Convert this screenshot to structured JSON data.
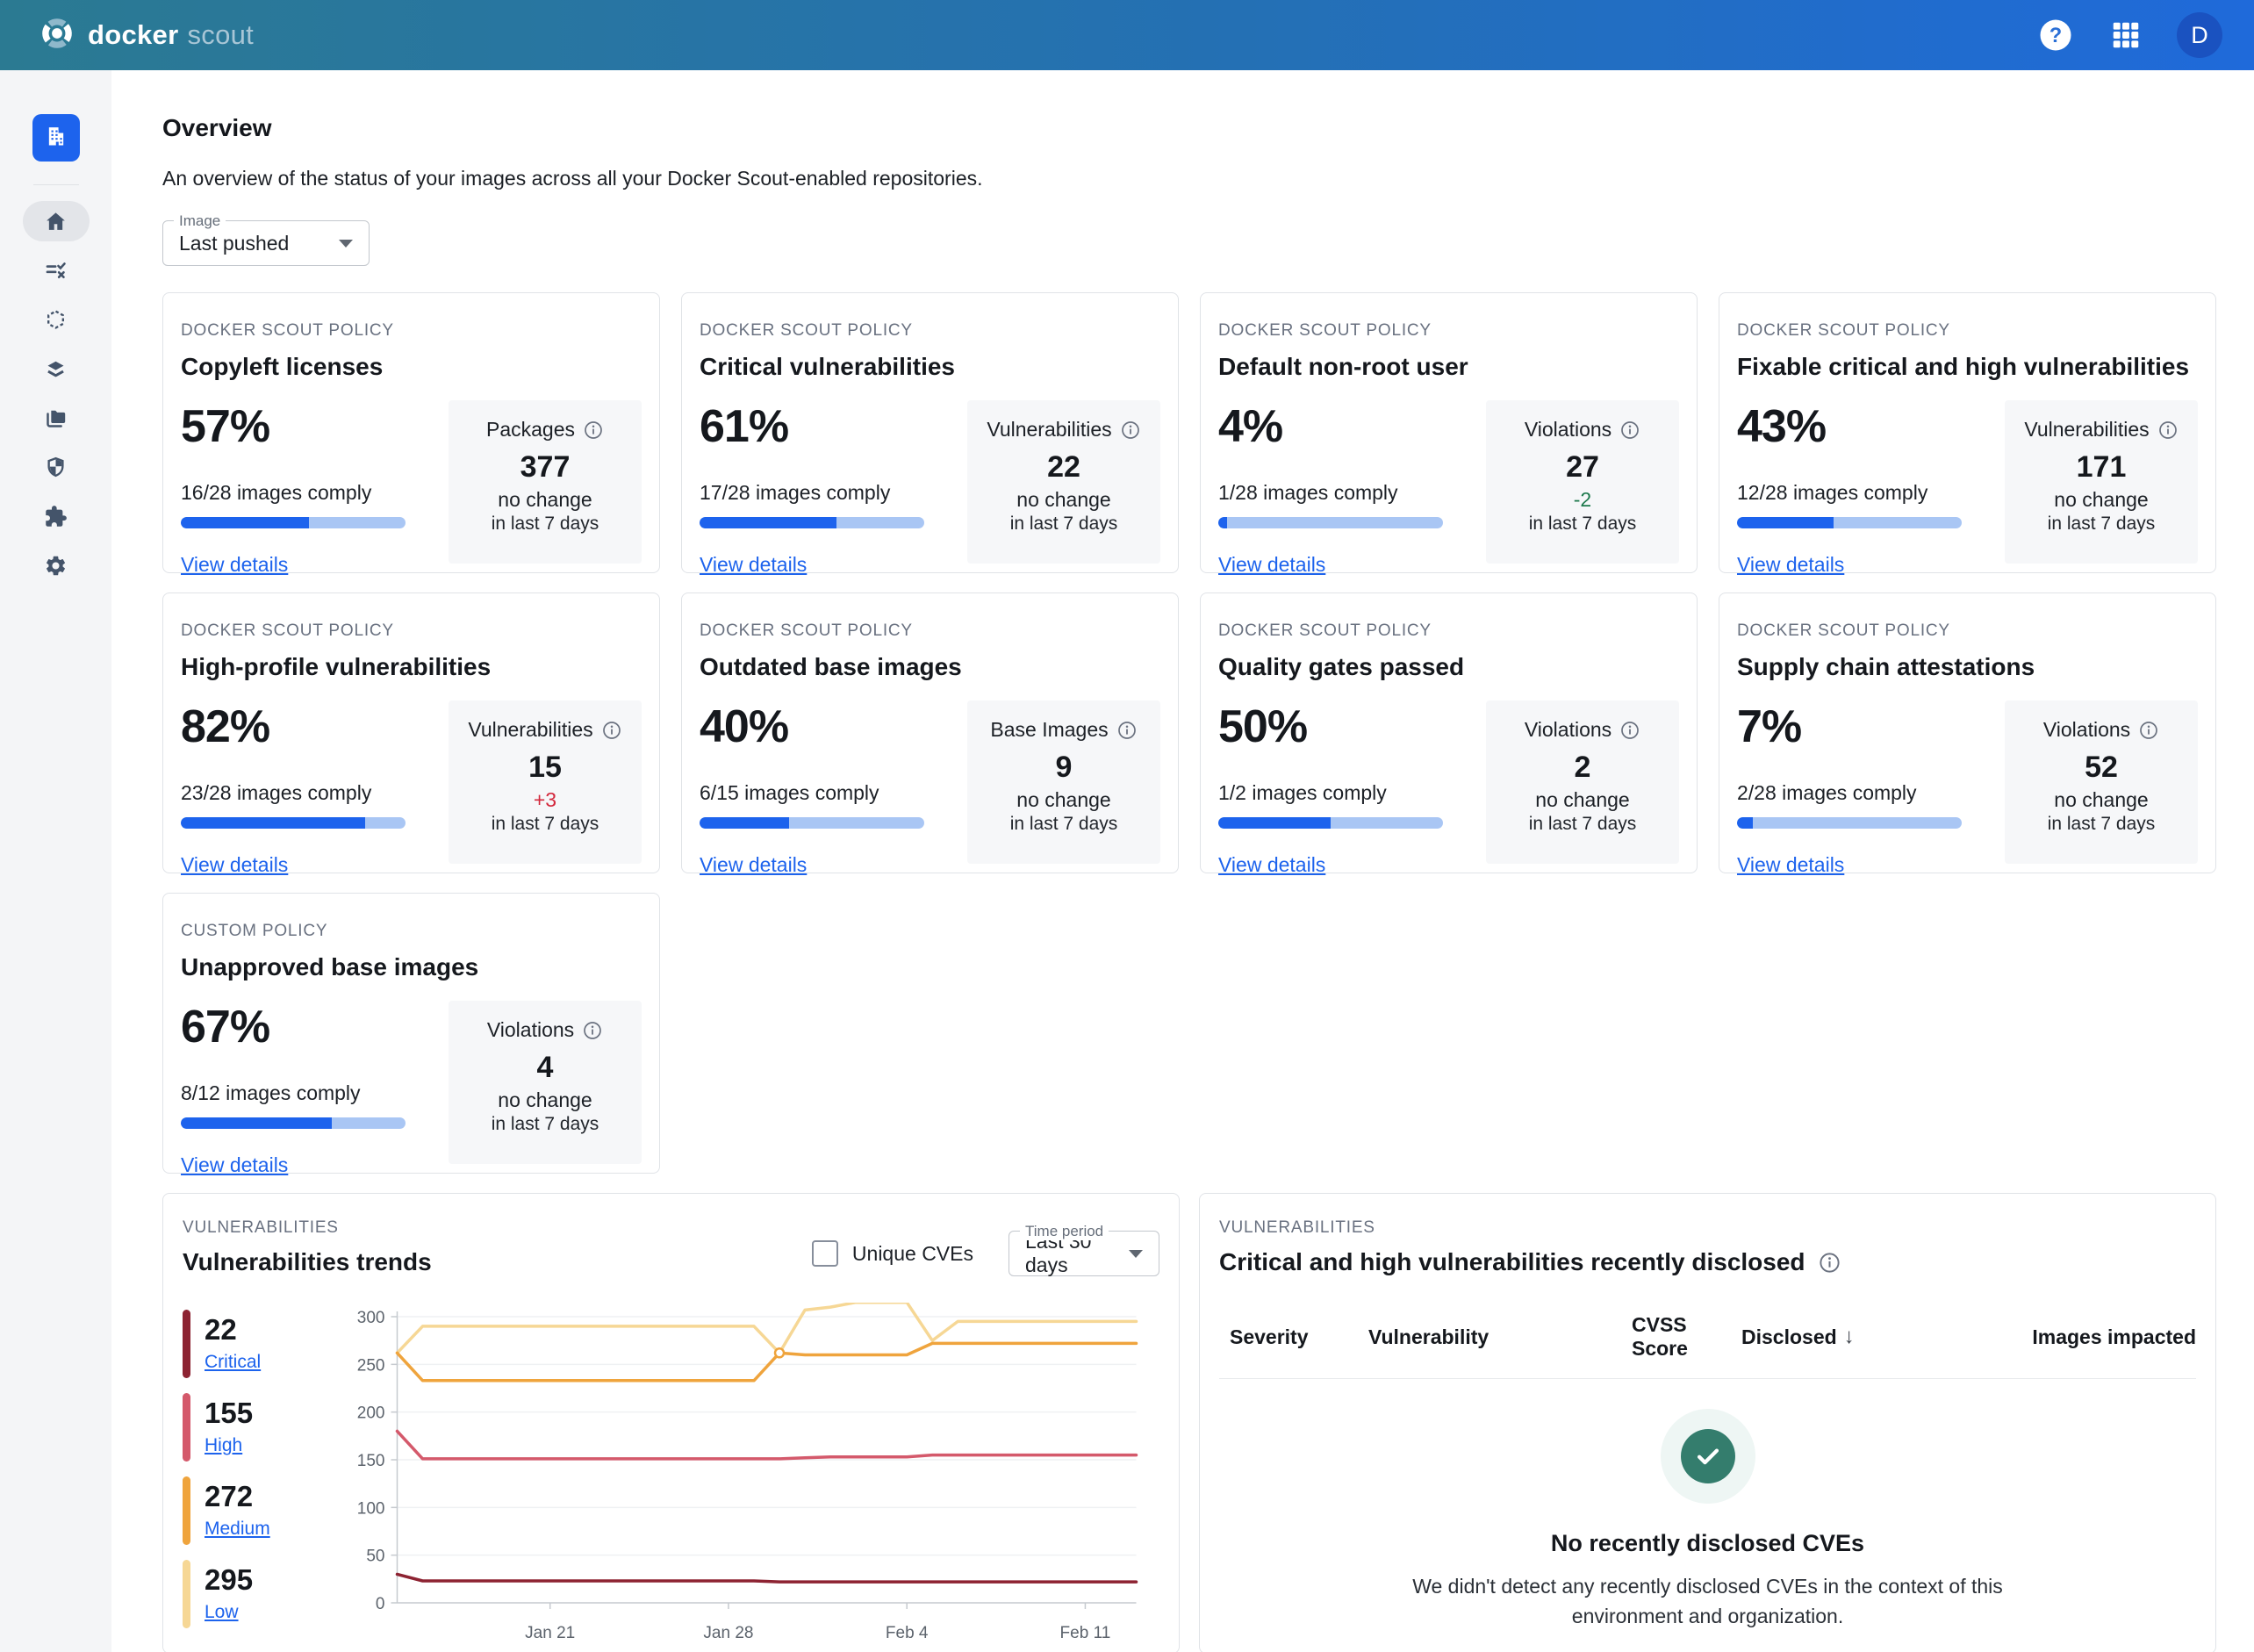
{
  "topbar": {
    "brand_docker": "docker",
    "brand_scout": "scout",
    "avatar_initial": "D",
    "icons": [
      "help-icon",
      "apps-grid-icon",
      "avatar"
    ]
  },
  "sidebar": {
    "icons": [
      "organization-building-icon",
      "home-icon",
      "policies-checklist-icon",
      "images-cube-icon",
      "layers-icon",
      "repositories-folder-icon",
      "vulnerabilities-shield-icon",
      "integrations-puzzle-icon",
      "settings-gear-icon"
    ]
  },
  "header": {
    "title": "Overview",
    "subtitle": "An overview of the status of your images across all your Docker Scout-enabled repositories.",
    "image_filter_label": "Image",
    "image_filter_value": "Last pushed"
  },
  "cards": [
    {
      "eyebrow": "DOCKER SCOUT POLICY",
      "title": "Copyleft licenses",
      "percent": "57%",
      "comply": "16/28 images comply",
      "progress": 57,
      "link": "View details",
      "stat": {
        "label": "Packages",
        "value": "377",
        "change": "no change",
        "change_type": "neutral",
        "period": "in last 7 days"
      }
    },
    {
      "eyebrow": "DOCKER SCOUT POLICY",
      "title": "Critical vulnerabilities",
      "percent": "61%",
      "comply": "17/28 images comply",
      "progress": 61,
      "link": "View details",
      "stat": {
        "label": "Vulnerabilities",
        "value": "22",
        "change": "no change",
        "change_type": "neutral",
        "period": "in last 7 days"
      }
    },
    {
      "eyebrow": "DOCKER SCOUT POLICY",
      "title": "Default non-root user",
      "percent": "4%",
      "comply": "1/28 images comply",
      "progress": 4,
      "link": "View details",
      "stat": {
        "label": "Violations",
        "value": "27",
        "change": "-2",
        "change_type": "decrease",
        "period": "in last 7 days"
      }
    },
    {
      "eyebrow": "DOCKER SCOUT POLICY",
      "title": "Fixable critical and high vulnerabilities",
      "percent": "43%",
      "comply": "12/28 images comply",
      "progress": 43,
      "link": "View details",
      "stat": {
        "label": "Vulnerabilities",
        "value": "171",
        "change": "no change",
        "change_type": "neutral",
        "period": "in last 7 days"
      }
    },
    {
      "eyebrow": "DOCKER SCOUT POLICY",
      "title": "High-profile vulnerabilities",
      "percent": "82%",
      "comply": "23/28 images comply",
      "progress": 82,
      "link": "View details",
      "stat": {
        "label": "Vulnerabilities",
        "value": "15",
        "change": "+3",
        "change_type": "increase",
        "period": "in last 7 days"
      }
    },
    {
      "eyebrow": "DOCKER SCOUT POLICY",
      "title": "Outdated base images",
      "percent": "40%",
      "comply": "6/15 images comply",
      "progress": 40,
      "link": "View details",
      "stat": {
        "label": "Base Images",
        "value": "9",
        "change": "no change",
        "change_type": "neutral",
        "period": "in last 7 days"
      }
    },
    {
      "eyebrow": "DOCKER SCOUT POLICY",
      "title": "Quality gates passed",
      "percent": "50%",
      "comply": "1/2 images comply",
      "progress": 50,
      "link": "View details",
      "stat": {
        "label": "Violations",
        "value": "2",
        "change": "no change",
        "change_type": "neutral",
        "period": "in last 7 days"
      }
    },
    {
      "eyebrow": "DOCKER SCOUT POLICY",
      "title": "Supply chain attestations",
      "percent": "7%",
      "comply": "2/28 images comply",
      "progress": 7,
      "link": "View details",
      "stat": {
        "label": "Violations",
        "value": "52",
        "change": "no change",
        "change_type": "neutral",
        "period": "in last 7 days"
      }
    },
    {
      "eyebrow": "CUSTOM POLICY",
      "title": "Unapproved base images",
      "percent": "67%",
      "comply": "8/12 images comply",
      "progress": 67,
      "link": "View details",
      "stat": {
        "label": "Violations",
        "value": "4",
        "change": "no change",
        "change_type": "neutral",
        "period": "in last 7 days"
      }
    }
  ],
  "trends": {
    "eyebrow": "VULNERABILITIES",
    "title": "Vulnerabilities trends",
    "checkbox_label": "Unique CVEs",
    "checkbox_checked": false,
    "time_period_label": "Time period",
    "time_period_value": "Last 30 days",
    "legend": [
      {
        "count": "22",
        "label": "Critical",
        "color": "#8d2332"
      },
      {
        "count": "155",
        "label": "High",
        "color": "#d4596b"
      },
      {
        "count": "272",
        "label": "Medium",
        "color": "#efa43d"
      },
      {
        "count": "295",
        "label": "Low",
        "color": "#f6d795"
      }
    ],
    "chart_data": {
      "type": "line",
      "title": "Vulnerabilities trends",
      "ylim": [
        0,
        300
      ],
      "y_ticks": [
        0,
        50,
        100,
        150,
        200,
        250,
        300
      ],
      "grid": true,
      "x_total_points": 30,
      "x_ticks": [
        {
          "day": 6,
          "label": "Jan 21"
        },
        {
          "day": 13,
          "label": "Jan 28"
        },
        {
          "day": 20,
          "label": "Feb 4"
        },
        {
          "day": 27,
          "label": "Feb 11"
        }
      ],
      "series": [
        {
          "name": "Low",
          "color": "#f6d795",
          "values": [
            262,
            290,
            290,
            290,
            290,
            290,
            290,
            290,
            290,
            290,
            290,
            290,
            290,
            290,
            290,
            262,
            307,
            310,
            315,
            315,
            315,
            275,
            295,
            295,
            295,
            295,
            295,
            295,
            295,
            295
          ]
        },
        {
          "name": "Medium",
          "color": "#efa43d",
          "marker_day": 15,
          "values": [
            262,
            233,
            233,
            233,
            233,
            233,
            233,
            233,
            233,
            233,
            233,
            233,
            233,
            233,
            233,
            262,
            260,
            260,
            260,
            260,
            260,
            272,
            272,
            272,
            272,
            272,
            272,
            272,
            272,
            272
          ]
        },
        {
          "name": "High",
          "color": "#d4596b",
          "values": [
            180,
            151,
            151,
            151,
            151,
            151,
            151,
            151,
            151,
            151,
            151,
            151,
            151,
            151,
            151,
            151,
            152,
            153,
            153,
            153,
            153,
            155,
            155,
            155,
            155,
            155,
            155,
            155,
            155,
            155
          ]
        },
        {
          "name": "Critical",
          "color": "#8d2332",
          "values": [
            30,
            23,
            23,
            23,
            23,
            23,
            23,
            23,
            23,
            23,
            23,
            23,
            23,
            23,
            23,
            22,
            22,
            22,
            22,
            22,
            22,
            22,
            22,
            22,
            22,
            22,
            22,
            22,
            22,
            22
          ]
        }
      ]
    }
  },
  "disclosed": {
    "eyebrow": "VULNERABILITIES",
    "title": "Critical and high vulnerabilities recently disclosed",
    "columns": [
      {
        "label": "Severity"
      },
      {
        "label": "Vulnerability"
      },
      {
        "label": "CVSS Score"
      },
      {
        "label": "Disclosed",
        "sorted": true
      },
      {
        "label": "Images impacted",
        "align": "right"
      }
    ],
    "empty_title": "No recently disclosed CVEs",
    "empty_body": "We didn't detect any recently disclosed CVEs in the context of this environment and organization."
  },
  "colors": {
    "primary_blue": "#1d63ed",
    "progress_track": "#a9c6f4",
    "positive_green": "#1e7a4d",
    "negative_red": "#d3293d",
    "topbar_left": "#2b7a92",
    "topbar_right": "#1f6ada",
    "empty_check_green": "#347d6d"
  }
}
